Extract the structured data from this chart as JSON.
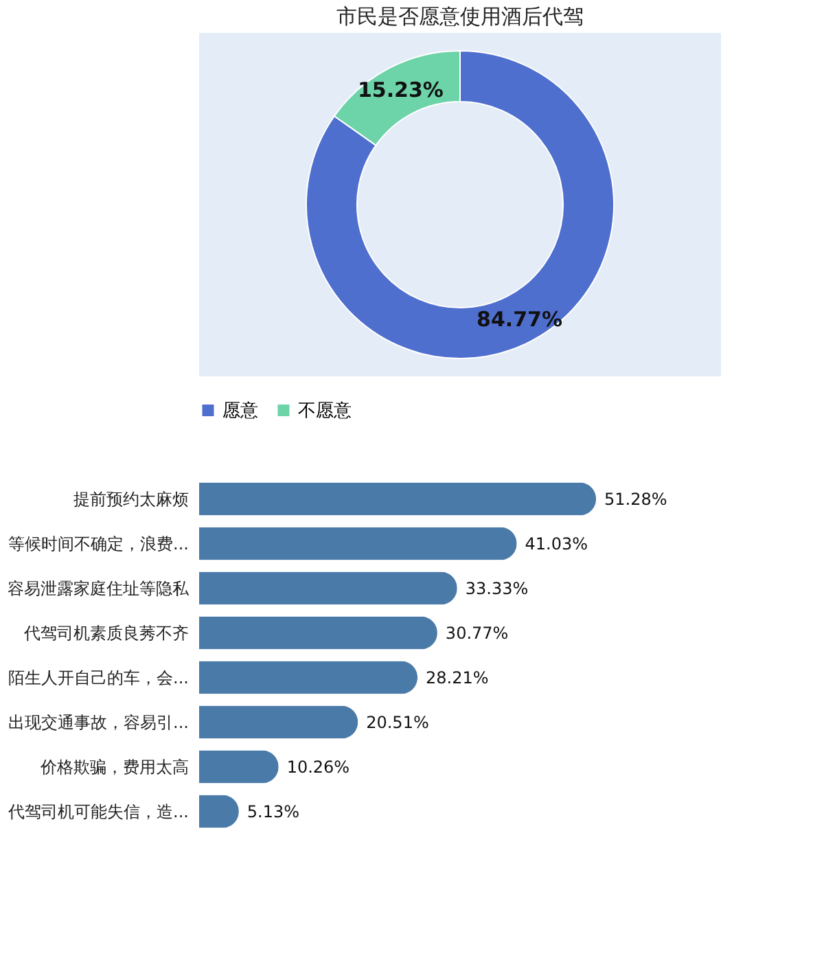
{
  "chart_data": [
    {
      "type": "donut",
      "title": "市民是否愿意使用酒后代驾",
      "categories": [
        "愿意",
        "不愿意"
      ],
      "values": [
        84.77,
        15.23
      ],
      "colors": [
        "#4f6fcf",
        "#6dd3a8"
      ],
      "value_labels": [
        "84.77%",
        "15.23%"
      ],
      "legend": "bottom"
    },
    {
      "type": "bar",
      "orientation": "horizontal",
      "categories": [
        "提前预约太麻烦",
        "等候时间不确定，浪费...",
        "容易泄露家庭住址等隐私",
        "代驾司机素质良莠不齐",
        "陌生人开自己的车，会...",
        "出现交通事故，容易引...",
        "价格欺骗，费用太高",
        "代驾司机可能失信，造..."
      ],
      "values": [
        51.28,
        41.03,
        33.33,
        30.77,
        28.21,
        20.51,
        10.26,
        5.13
      ],
      "color": "#4a7aa8",
      "value_labels": [
        "51.28%",
        "41.03%",
        "33.33%",
        "30.77%",
        "28.21%",
        "20.51%",
        "10.26%",
        "5.13%"
      ]
    }
  ]
}
